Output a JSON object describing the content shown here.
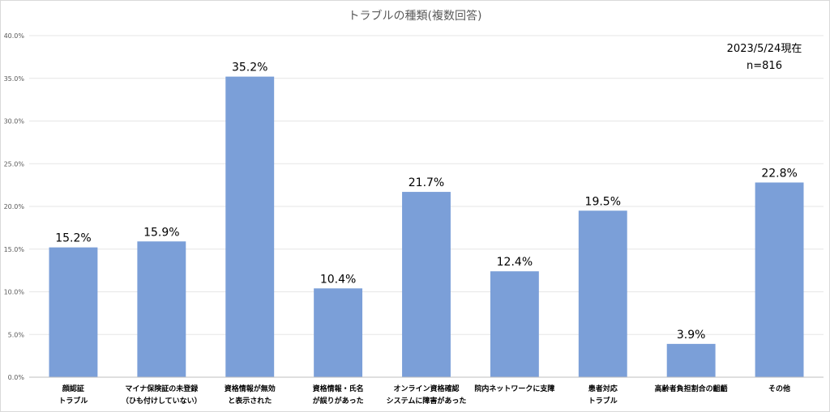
{
  "chart_data": {
    "type": "bar",
    "title": "トラブルの種類(複数回答)",
    "annotation": [
      "2023/5/24現在",
      "n=816"
    ],
    "categories": [
      [
        "顔認証",
        "トラブル"
      ],
      [
        "マイナ保険証の未登録",
        "（ひも付けしていない）"
      ],
      [
        "資格情報が無効",
        "と表示された"
      ],
      [
        "資格情報・氏名",
        "が誤りがあった"
      ],
      [
        "オンライン資格確認",
        "システムに障害があった"
      ],
      [
        "院内ネットワークに支障"
      ],
      [
        "患者対応",
        "トラブル"
      ],
      [
        "高齢者負担割合の齟齬"
      ],
      [
        "その他"
      ]
    ],
    "values": [
      15.2,
      15.9,
      35.2,
      10.4,
      21.7,
      12.4,
      19.5,
      3.9,
      22.8
    ],
    "data_labels": [
      "15.2%",
      "15.9%",
      "35.2%",
      "10.4%",
      "21.7%",
      "12.4%",
      "19.5%",
      "3.9%",
      "22.8%"
    ],
    "ylim": [
      0,
      40
    ],
    "yticks": [
      0,
      5,
      10,
      15,
      20,
      25,
      30,
      35,
      40
    ],
    "ytick_labels": [
      "0.0%",
      "5.0%",
      "10.0%",
      "15.0%",
      "20.0%",
      "25.0%",
      "30.0%",
      "35.0%",
      "40.0%"
    ],
    "xlabel": "",
    "ylabel": "",
    "grid": true,
    "bar_color": "#7b9fd8",
    "grid_color": "#e6e6e6"
  }
}
